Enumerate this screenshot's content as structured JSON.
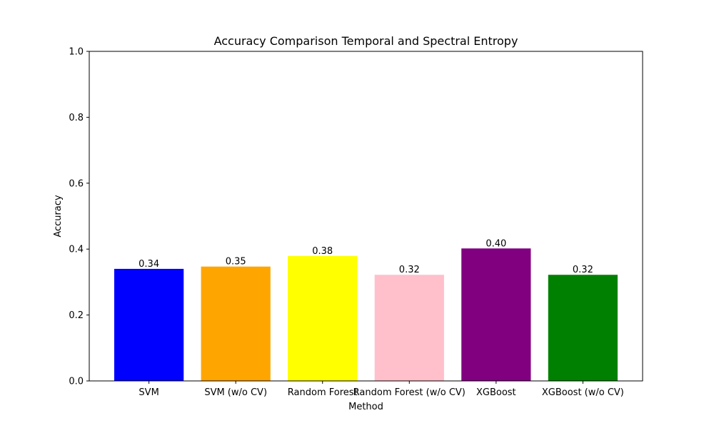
{
  "chart_data": {
    "type": "bar",
    "title": "Accuracy Comparison Temporal and Spectral Entropy",
    "xlabel": "Method",
    "ylabel": "Accuracy",
    "categories": [
      "SVM",
      "SVM (w/o CV)",
      "Random Forest",
      "Random Forest (w/o CV)",
      "XGBoost",
      "XGBoost (w/o CV)"
    ],
    "values": [
      0.34,
      0.347,
      0.379,
      0.322,
      0.402,
      0.322
    ],
    "data_labels": [
      "0.34",
      "0.35",
      "0.38",
      "0.32",
      "0.40",
      "0.32"
    ],
    "colors": [
      "#0000ff",
      "#ffa500",
      "#ffff00",
      "#ffc0cb",
      "#800080",
      "#008000"
    ],
    "ylim": [
      0,
      1.0
    ],
    "yticks": [
      0.0,
      0.2,
      0.4,
      0.6,
      0.8,
      1.0
    ],
    "ytick_labels": [
      "0.0",
      "0.2",
      "0.4",
      "0.6",
      "0.8",
      "1.0"
    ],
    "grid": false,
    "legend": false
  }
}
